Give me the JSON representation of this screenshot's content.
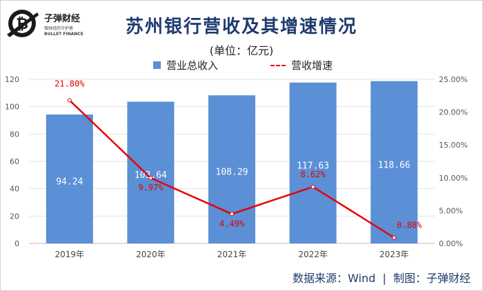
{
  "logo": {
    "name": "子弹财经",
    "tagline_cn": "做财经的守护者",
    "tagline_en": "BULLET FINANCE"
  },
  "source_text": "数据来源：Wind  |  制图：子弹财经",
  "colors": {
    "bar": "#5b8fd6",
    "line": "#e60000",
    "title": "#1f3b6e"
  },
  "chart_data": {
    "type": "bar",
    "title": "苏州银行营收及其增速情况",
    "subtitle": "(单位：亿元)",
    "categories": [
      "2019年",
      "2020年",
      "2021年",
      "2022年",
      "2023年"
    ],
    "series": [
      {
        "name": "营业总收入",
        "type": "bar",
        "axis": "left",
        "values": [
          94.24,
          103.64,
          108.29,
          117.63,
          118.66
        ],
        "labels": [
          "94.24",
          "103.64",
          "108.29",
          "117.63",
          "118.66"
        ]
      },
      {
        "name": "营收增速",
        "type": "line",
        "axis": "right",
        "values": [
          21.8,
          9.97,
          4.49,
          8.62,
          0.88
        ],
        "labels": [
          "21.80%",
          "9.97%",
          "4.49%",
          "8.62%",
          "0.88%"
        ]
      }
    ],
    "left_axis": {
      "ylim": [
        0,
        120
      ],
      "ticks": [
        "0",
        "20",
        "40",
        "60",
        "80",
        "100",
        "120"
      ]
    },
    "right_axis": {
      "ylim": [
        0,
        25
      ],
      "ticks": [
        "0.00%",
        "5.00%",
        "10.00%",
        "15.00%",
        "20.00%",
        "25.00%"
      ]
    },
    "grid": true,
    "legend_position": "top"
  }
}
